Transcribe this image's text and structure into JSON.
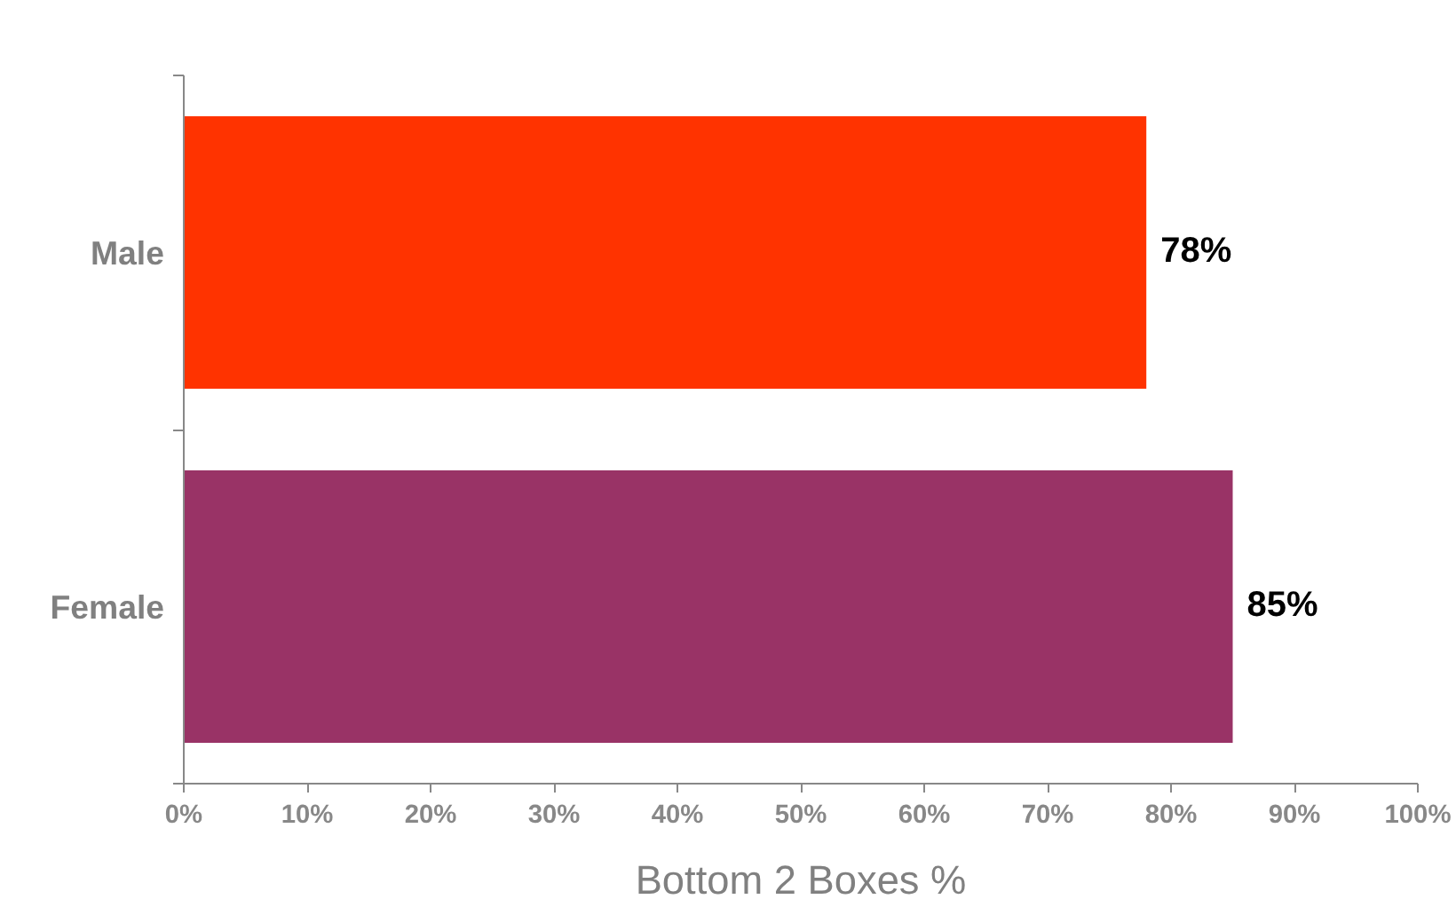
{
  "chart_data": {
    "type": "bar",
    "orientation": "horizontal",
    "xlabel": "Bottom 2 Boxes %",
    "categories": [
      "Male",
      "Female"
    ],
    "values": [
      78,
      85
    ],
    "colors": [
      "#ff3300",
      "#993366"
    ],
    "value_labels": [
      "78%",
      "85%"
    ],
    "xlim": [
      0,
      100
    ],
    "xticks": [
      {
        "value": 0,
        "label": "0%"
      },
      {
        "value": 10,
        "label": "10%"
      },
      {
        "value": 20,
        "label": "20%"
      },
      {
        "value": 30,
        "label": "30%"
      },
      {
        "value": 40,
        "label": "40%"
      },
      {
        "value": 50,
        "label": "50%"
      },
      {
        "value": 60,
        "label": "60%"
      },
      {
        "value": 70,
        "label": "70%"
      },
      {
        "value": 80,
        "label": "80%"
      },
      {
        "value": 90,
        "label": "90%"
      },
      {
        "value": 100,
        "label": "100%"
      }
    ],
    "grid": false
  }
}
